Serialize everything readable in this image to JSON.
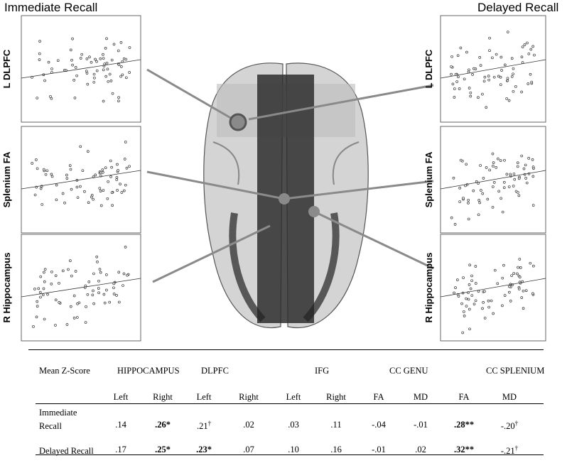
{
  "figure": {
    "left_heading": "Immediate Recall",
    "right_heading": "Delayed Recall",
    "panel_labels": [
      "L DLPFC",
      "Splenium FA",
      "R Hippocampus"
    ]
  },
  "table": {
    "header": [
      "Mean Z-Score",
      "HIPPOCAMPUS",
      "DLPFC",
      "IFG",
      "CC GENU",
      "CC SPLENIUM"
    ],
    "subheader": [
      "Left",
      "Right",
      "Left",
      "Right",
      "Left",
      "Right",
      "FA",
      "MD",
      "FA",
      "MD"
    ],
    "rows": [
      {
        "label": "Immediate Recall",
        "cells": [
          {
            "text": ".14"
          },
          {
            "text": ".26*",
            "bold": true
          },
          {
            "text": ".21",
            "sup": "†"
          },
          {
            "text": ".02"
          },
          {
            "text": ".03"
          },
          {
            "text": ".11"
          },
          {
            "text": "-.04"
          },
          {
            "text": "-.01"
          },
          {
            "text": ".28**",
            "bold": true
          },
          {
            "text": "-.20",
            "sup": "†"
          }
        ]
      },
      {
        "label": "Delayed Recall",
        "cells": [
          {
            "text": ".17"
          },
          {
            "text": ".25*",
            "bold": true
          },
          {
            "text": ".23*",
            "bold": true
          },
          {
            "text": ".07"
          },
          {
            "text": ".10"
          },
          {
            "text": ".16"
          },
          {
            "text": "-.01"
          },
          {
            "text": ".02"
          },
          {
            "text": ".32**",
            "bold": true
          },
          {
            "text": "-.21",
            "sup": "†"
          }
        ]
      }
    ]
  }
}
